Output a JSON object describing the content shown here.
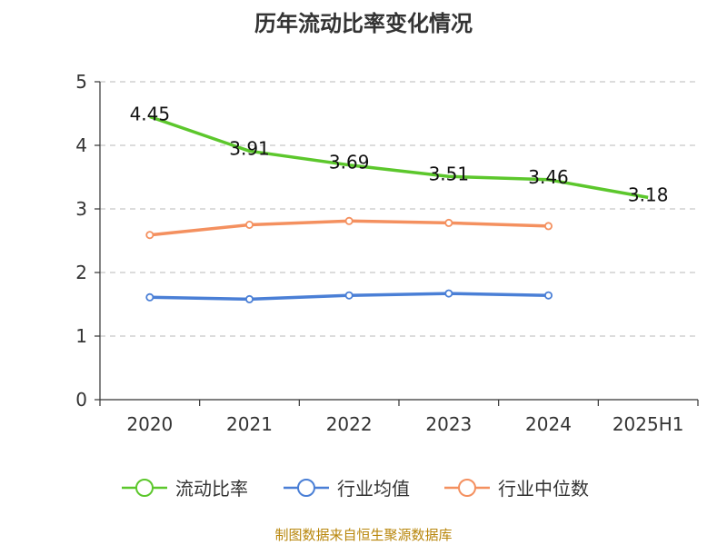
{
  "chart_data": {
    "type": "line",
    "title": "历年流动比率变化情况",
    "categories": [
      "2020",
      "2021",
      "2022",
      "2023",
      "2024",
      "2025H1"
    ],
    "ylim": [
      0,
      5
    ],
    "yticks": [
      "0",
      "1",
      "2",
      "3",
      "4",
      "5"
    ],
    "grid": true,
    "legend_position": "bottom",
    "series": [
      {
        "name": "流动比率",
        "color": "#5cc72c",
        "values": [
          4.45,
          3.91,
          3.69,
          3.51,
          3.46,
          3.18
        ],
        "labels": [
          "4.45",
          "3.91",
          "3.69",
          "3.51",
          "3.46",
          "3.18"
        ],
        "markers": false
      },
      {
        "name": "行业均值",
        "color": "#4a7fd6",
        "values": [
          1.61,
          1.58,
          1.64,
          1.67,
          1.64,
          null
        ],
        "markers": true
      },
      {
        "name": "行业中位数",
        "color": "#f4905f",
        "values": [
          2.59,
          2.75,
          2.81,
          2.78,
          2.73,
          null
        ],
        "markers": true
      }
    ]
  },
  "source": "制图数据来自恒生聚源数据库"
}
